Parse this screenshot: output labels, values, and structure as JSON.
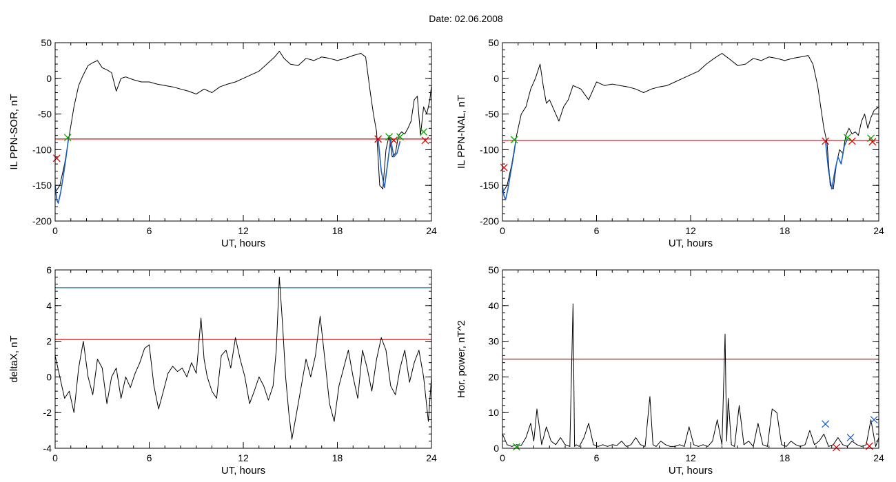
{
  "figure": {
    "title": "Date:  02.06.2008"
  },
  "chart_data": [
    {
      "id": "il-ppn-sor",
      "type": "line",
      "xlabel": "UT, hours",
      "ylabel": "IL PPN-SOR, nT",
      "xlim": [
        0,
        24
      ],
      "ylim": [
        -200,
        50
      ],
      "xticks": [
        0,
        6,
        12,
        18,
        24
      ],
      "yticks": [
        -200,
        -150,
        -100,
        -50,
        0,
        50
      ],
      "series": [
        {
          "color": "#000000",
          "x": [
            0.0,
            0.3,
            0.6,
            0.9,
            1.2,
            1.5,
            1.8,
            2.1,
            2.4,
            2.7,
            3.0,
            3.3,
            3.6,
            3.9,
            4.2,
            4.5,
            5.0,
            5.5,
            6.0,
            6.5,
            7.0,
            7.5,
            8.0,
            8.5,
            9.0,
            9.5,
            10.0,
            10.5,
            11.0,
            11.5,
            12.0,
            12.5,
            13.0,
            13.5,
            14.0,
            14.3,
            14.6,
            15.0,
            15.5,
            16.0,
            16.5,
            17.0,
            17.5,
            18.0,
            18.5,
            19.0,
            19.5,
            19.8,
            20.1,
            20.3,
            20.5,
            20.7,
            20.9,
            21.1,
            21.3,
            21.5,
            21.7,
            21.9,
            22.1,
            22.3,
            22.5,
            22.7,
            22.9,
            23.1,
            23.3,
            23.5,
            23.7,
            23.9,
            24.0
          ],
          "y": [
            -160,
            -150,
            -120,
            -80,
            -40,
            -10,
            5,
            18,
            22,
            25,
            15,
            12,
            8,
            -18,
            0,
            2,
            -2,
            -5,
            -5,
            -8,
            -10,
            -12,
            -15,
            -18,
            -22,
            -15,
            -20,
            -12,
            -8,
            -5,
            0,
            5,
            10,
            20,
            30,
            38,
            28,
            20,
            18,
            28,
            25,
            30,
            28,
            25,
            28,
            32,
            35,
            30,
            -20,
            -50,
            -75,
            -150,
            -155,
            -100,
            -80,
            -110,
            -105,
            -80,
            -75,
            -78,
            -70,
            -60,
            -30,
            -25,
            -80,
            -40,
            -50,
            -30,
            -10
          ]
        },
        {
          "name": "",
          "color": "#1f5fbf",
          "x": [
            0.0,
            0.1,
            0.2,
            0.35,
            0.5,
            0.7,
            0.85
          ],
          "y": [
            -150,
            -170,
            -175,
            -160,
            -140,
            -110,
            -85
          ]
        },
        {
          "name": "",
          "color": "#1f5fbf",
          "x": [
            20.6,
            20.8,
            21.0,
            21.2,
            21.4,
            21.6,
            21.8,
            22.0
          ],
          "y": [
            -85,
            -130,
            -153,
            -120,
            -85,
            -110,
            -105,
            -88
          ]
        }
      ],
      "hlines": [
        {
          "y": -85,
          "color": "#e00000"
        }
      ],
      "markers": [
        {
          "x": 0.8,
          "y": -83,
          "shape": "x",
          "color": "#00aa00"
        },
        {
          "x": 20.6,
          "y": -85,
          "shape": "x",
          "color": "#e00000"
        },
        {
          "x": 21.3,
          "y": -82,
          "shape": "x",
          "color": "#00aa00"
        },
        {
          "x": 21.6,
          "y": -87,
          "shape": "x",
          "color": "#e00000"
        },
        {
          "x": 22.0,
          "y": -82,
          "shape": "x",
          "color": "#00aa00"
        },
        {
          "x": 23.5,
          "y": -75,
          "shape": "x",
          "color": "#00aa00"
        },
        {
          "x": 23.6,
          "y": -87,
          "shape": "x",
          "color": "#e00000"
        },
        {
          "x": 0.1,
          "y": -112,
          "shape": "x",
          "color": "#e00000"
        }
      ]
    },
    {
      "id": "il-ppn-nal",
      "type": "line",
      "xlabel": "UT, hours",
      "ylabel": "IL PPN-NAL, nT",
      "xlim": [
        0,
        24
      ],
      "ylim": [
        -200,
        50
      ],
      "xticks": [
        0,
        6,
        12,
        18,
        24
      ],
      "yticks": [
        -200,
        -150,
        -100,
        -50,
        0,
        50
      ],
      "series": [
        {
          "color": "#000000",
          "x": [
            0.0,
            0.3,
            0.6,
            0.9,
            1.2,
            1.5,
            1.8,
            2.1,
            2.4,
            2.6,
            2.8,
            3.0,
            3.3,
            3.6,
            3.9,
            4.2,
            4.5,
            5.0,
            5.5,
            6.0,
            6.5,
            7.0,
            7.5,
            8.0,
            8.5,
            9.0,
            9.5,
            10.0,
            10.5,
            11.0,
            11.5,
            12.0,
            12.5,
            13.0,
            13.5,
            14.0,
            14.3,
            14.6,
            15.0,
            15.5,
            16.0,
            16.5,
            17.0,
            17.5,
            18.0,
            18.5,
            19.0,
            19.5,
            19.8,
            20.1,
            20.3,
            20.5,
            20.7,
            20.9,
            21.1,
            21.3,
            21.5,
            21.7,
            21.9,
            22.1,
            22.3,
            22.5,
            22.7,
            22.9,
            23.1,
            23.3,
            23.5,
            23.7,
            24.0
          ],
          "y": [
            -160,
            -150,
            -120,
            -80,
            -50,
            -40,
            -15,
            0,
            20,
            -10,
            -35,
            -30,
            -45,
            -60,
            -40,
            -30,
            -10,
            -15,
            -30,
            -5,
            -10,
            -8,
            -10,
            -12,
            -15,
            -20,
            -15,
            -12,
            -10,
            -5,
            0,
            5,
            10,
            20,
            28,
            35,
            30,
            25,
            18,
            20,
            28,
            25,
            30,
            28,
            25,
            28,
            30,
            32,
            20,
            -10,
            -40,
            -70,
            -90,
            -150,
            -155,
            -120,
            -100,
            -105,
            -80,
            -70,
            -78,
            -75,
            -80,
            -60,
            -50,
            -70,
            -55,
            -45,
            -40
          ]
        },
        {
          "name": "",
          "color": "#1f5fbf",
          "x": [
            0.0,
            0.1,
            0.2,
            0.35,
            0.5,
            0.7,
            0.85
          ],
          "y": [
            -150,
            -165,
            -170,
            -155,
            -135,
            -110,
            -88
          ]
        },
        {
          "name": "",
          "color": "#1f5fbf",
          "x": [
            20.6,
            20.8,
            21.0,
            21.2,
            21.4,
            21.6,
            21.8,
            22.0
          ],
          "y": [
            -88,
            -130,
            -155,
            -130,
            -110,
            -120,
            -95,
            -85
          ]
        }
      ],
      "hlines": [
        {
          "y": -87,
          "color": "#e00000"
        }
      ],
      "markers": [
        {
          "x": 0.75,
          "y": -86,
          "shape": "x",
          "color": "#00aa00"
        },
        {
          "x": 20.6,
          "y": -88,
          "shape": "x",
          "color": "#e00000"
        },
        {
          "x": 22.0,
          "y": -83,
          "shape": "x",
          "color": "#00aa00"
        },
        {
          "x": 22.3,
          "y": -88,
          "shape": "x",
          "color": "#e00000"
        },
        {
          "x": 23.5,
          "y": -84,
          "shape": "x",
          "color": "#00aa00"
        },
        {
          "x": 23.6,
          "y": -89,
          "shape": "x",
          "color": "#e00000"
        },
        {
          "x": 0.1,
          "y": -125,
          "shape": "x",
          "color": "#e00000"
        }
      ]
    },
    {
      "id": "deltax",
      "type": "line",
      "xlabel": "UT, hours",
      "ylabel": "deltaX, nT",
      "xlim": [
        0,
        24
      ],
      "ylim": [
        -4,
        6
      ],
      "xticks": [
        0,
        6,
        12,
        18,
        24
      ],
      "yticks": [
        -4,
        -2,
        0,
        2,
        4,
        6
      ],
      "series": [
        {
          "color": "#000000",
          "x": [
            0.0,
            0.3,
            0.6,
            0.9,
            1.2,
            1.5,
            1.8,
            2.1,
            2.4,
            2.7,
            3.0,
            3.3,
            3.6,
            3.9,
            4.2,
            4.5,
            4.8,
            5.1,
            5.4,
            5.7,
            6.0,
            6.3,
            6.6,
            6.9,
            7.2,
            7.5,
            7.8,
            8.1,
            8.4,
            8.7,
            9.0,
            9.3,
            9.5,
            9.7,
            10.0,
            10.3,
            10.6,
            10.9,
            11.2,
            11.5,
            11.8,
            12.1,
            12.4,
            12.7,
            13.0,
            13.3,
            13.6,
            13.9,
            14.1,
            14.3,
            14.5,
            14.7,
            14.9,
            15.1,
            15.4,
            15.7,
            16.0,
            16.3,
            16.6,
            16.9,
            17.2,
            17.5,
            17.8,
            18.1,
            18.4,
            18.7,
            19.0,
            19.3,
            19.6,
            19.9,
            20.2,
            20.5,
            20.8,
            21.1,
            21.4,
            21.7,
            22.0,
            22.3,
            22.6,
            22.9,
            23.2,
            23.5,
            23.8,
            24.0
          ],
          "y": [
            1.2,
            0.0,
            -1.2,
            -0.8,
            -2.0,
            0.5,
            2.0,
            0.0,
            -1.0,
            1.0,
            0.5,
            -1.5,
            0.0,
            0.5,
            -1.2,
            0.0,
            -0.6,
            0.2,
            0.8,
            1.6,
            1.8,
            -0.5,
            -1.8,
            -0.8,
            0.2,
            0.6,
            0.3,
            0.5,
            0.0,
            0.8,
            0.2,
            3.3,
            1.0,
            0.0,
            -0.8,
            -1.2,
            1.2,
            1.5,
            0.5,
            2.2,
            1.0,
            0.0,
            -1.5,
            -0.8,
            0.0,
            -0.5,
            -1.3,
            -0.5,
            1.5,
            5.6,
            3.0,
            0.0,
            -2.0,
            -3.5,
            -2.0,
            -0.5,
            1.0,
            0.0,
            1.2,
            3.4,
            1.0,
            -1.5,
            -2.5,
            -0.5,
            0.5,
            1.5,
            0.0,
            -1.2,
            1.5,
            0.5,
            -0.8,
            1.0,
            2.2,
            1.5,
            -0.5,
            -1.0,
            0.5,
            1.5,
            -0.3,
            0.8,
            1.5,
            0.0,
            -2.5,
            0.0
          ]
        }
      ],
      "hlines": [
        {
          "y": 5.0,
          "color": "#1f7fa0"
        },
        {
          "y": 2.1,
          "color": "#e00000"
        }
      ],
      "markers": []
    },
    {
      "id": "hor-power",
      "type": "line",
      "xlabel": "UT, hours",
      "ylabel": "Hor. power, nT^2",
      "xlim": [
        0,
        24
      ],
      "ylim": [
        0,
        50
      ],
      "xticks": [
        0,
        6,
        12,
        18,
        24
      ],
      "yticks": [
        0,
        10,
        20,
        30,
        40,
        50
      ],
      "series": [
        {
          "color": "#000000",
          "x": [
            0.0,
            0.3,
            0.6,
            0.9,
            1.2,
            1.5,
            1.8,
            2.0,
            2.2,
            2.5,
            2.8,
            3.1,
            3.4,
            3.7,
            4.0,
            4.3,
            4.5,
            4.6,
            4.7,
            4.9,
            5.2,
            5.5,
            5.8,
            6.1,
            6.4,
            6.7,
            7.0,
            7.3,
            7.6,
            7.9,
            8.2,
            8.5,
            8.8,
            9.1,
            9.4,
            9.6,
            9.8,
            10.1,
            10.4,
            10.7,
            11.0,
            11.3,
            11.6,
            11.9,
            12.2,
            12.5,
            12.8,
            13.1,
            13.4,
            13.7,
            14.0,
            14.2,
            14.3,
            14.4,
            14.6,
            14.8,
            15.1,
            15.4,
            15.7,
            16.0,
            16.3,
            16.6,
            16.9,
            17.2,
            17.5,
            17.8,
            18.1,
            18.4,
            18.7,
            19.0,
            19.3,
            19.6,
            19.9,
            20.2,
            20.5,
            20.8,
            21.1,
            21.4,
            21.7,
            22.0,
            22.3,
            22.6,
            22.9,
            23.2,
            23.5,
            23.8,
            24.0
          ],
          "y": [
            4.0,
            1.0,
            0.5,
            1.0,
            0.8,
            3.0,
            7.0,
            2.0,
            11.0,
            1.0,
            6.0,
            2.0,
            1.0,
            3.0,
            1.0,
            0.5,
            40.5,
            0.5,
            1.0,
            0.5,
            3.0,
            7.0,
            1.0,
            0.5,
            1.0,
            0.5,
            1.0,
            0.8,
            2.0,
            0.5,
            1.0,
            3.0,
            1.0,
            0.5,
            14.5,
            1.0,
            0.5,
            2.0,
            1.0,
            0.5,
            0.5,
            1.0,
            0.5,
            6.0,
            1.0,
            0.5,
            1.0,
            0.5,
            2.0,
            8.0,
            1.0,
            32.0,
            2.0,
            14.0,
            1.0,
            0.5,
            12.0,
            1.0,
            2.0,
            0.5,
            7.0,
            1.0,
            0.5,
            11.0,
            10.0,
            1.0,
            0.5,
            2.0,
            1.0,
            0.5,
            1.0,
            5.0,
            1.0,
            2.0,
            4.0,
            0.5,
            1.0,
            3.0,
            1.0,
            0.5,
            2.0,
            1.0,
            0.5,
            1.0,
            8.0,
            0.5,
            3.0
          ]
        }
      ],
      "hlines": [
        {
          "y": 25,
          "color": "#e00000"
        }
      ],
      "markers": [
        {
          "x": 20.6,
          "y": 6.8,
          "shape": "x",
          "color": "#1f5fbf"
        },
        {
          "x": 22.2,
          "y": 3.0,
          "shape": "x",
          "color": "#1f5fbf"
        },
        {
          "x": 23.7,
          "y": 8.0,
          "shape": "x",
          "color": "#1f5fbf"
        },
        {
          "x": 0.9,
          "y": 0.4,
          "shape": "x",
          "color": "#00aa00"
        },
        {
          "x": 21.3,
          "y": 0.2,
          "shape": "x",
          "color": "#e00000"
        },
        {
          "x": 23.4,
          "y": 0.6,
          "shape": "x",
          "color": "#e00000"
        }
      ]
    }
  ]
}
